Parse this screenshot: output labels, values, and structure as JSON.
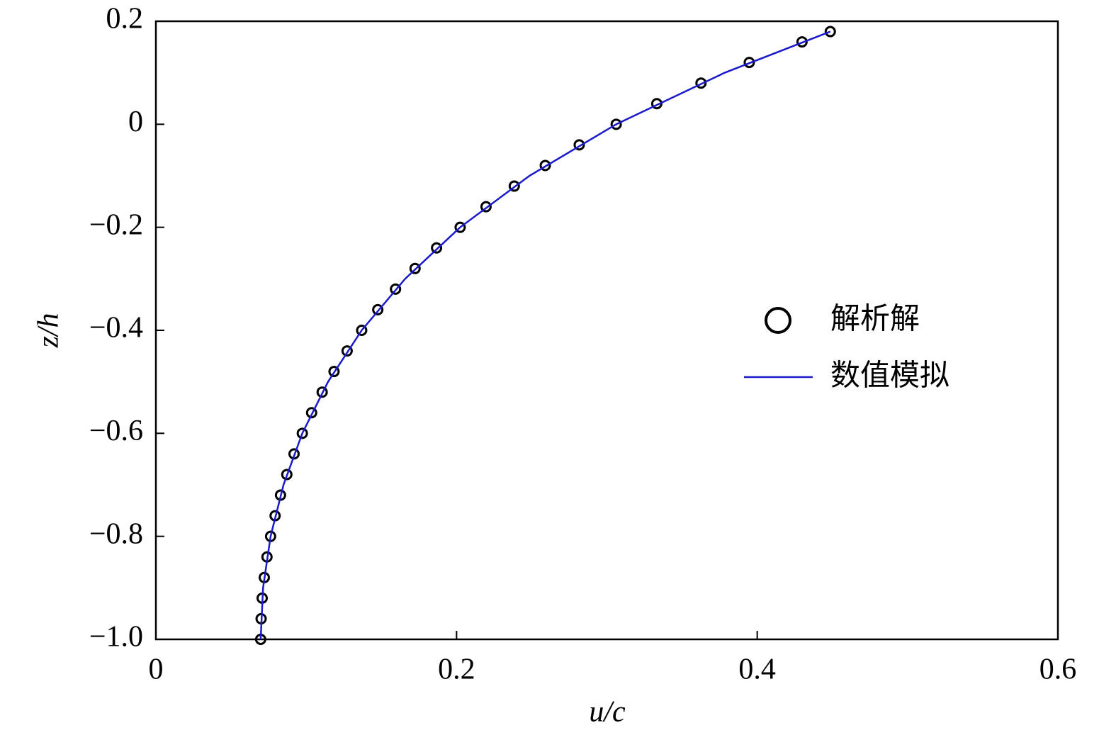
{
  "chart_data": {
    "type": "line",
    "x_label": "u/c",
    "y_label": "z/h",
    "xlim": [
      0,
      0.6
    ],
    "xticks": [
      0,
      0.2,
      0.4,
      0.6
    ],
    "ylim": [
      -1.0,
      0.2
    ],
    "yticks": [
      {
        "value": -1.0,
        "label": "−1.0"
      },
      {
        "value": -0.8,
        "label": "−0.8"
      },
      {
        "value": -0.6,
        "label": "−0.6"
      },
      {
        "value": -0.4,
        "label": "−0.4"
      },
      {
        "value": -0.2,
        "label": "−0.2"
      },
      0,
      0.2
    ],
    "legend": "right",
    "series": [
      {
        "name": "解析解",
        "type": "scatter",
        "color": "#000000",
        "x": [
          0.0697,
          0.07,
          0.0707,
          0.0721,
          0.0739,
          0.0763,
          0.0793,
          0.0829,
          0.0871,
          0.0919,
          0.0974,
          0.1036,
          0.1106,
          0.1185,
          0.1272,
          0.1369,
          0.1476,
          0.1594,
          0.1724,
          0.1867,
          0.2024,
          0.2196,
          0.2384,
          0.259,
          0.2816,
          0.3062,
          0.3332,
          0.3626,
          0.3947,
          0.4298,
          0.4486
        ],
        "values": [
          -1.0,
          -0.96,
          -0.92,
          -0.88,
          -0.84,
          -0.8,
          -0.76,
          -0.72,
          -0.68,
          -0.64,
          -0.6,
          -0.56,
          -0.52,
          -0.48,
          -0.44,
          -0.4,
          -0.36,
          -0.32,
          -0.28,
          -0.24,
          -0.2,
          -0.16,
          -0.12,
          -0.08,
          -0.04,
          0,
          0.04,
          0.08,
          0.12,
          0.16,
          0.18
        ]
      },
      {
        "name": "数值模拟",
        "type": "line",
        "color": "#1a1acc",
        "x": [
          0.0697,
          0.0713,
          0.0763,
          0.0849,
          0.0974,
          0.1145,
          0.1369,
          0.1658,
          0.2024,
          0.2485,
          0.3062,
          0.3783,
          0.4486
        ],
        "values": [
          -1.0,
          -0.9,
          -0.8,
          -0.7,
          -0.6,
          -0.5,
          -0.4,
          -0.3,
          -0.2,
          -0.1,
          0,
          0.1,
          0.18
        ]
      }
    ]
  }
}
